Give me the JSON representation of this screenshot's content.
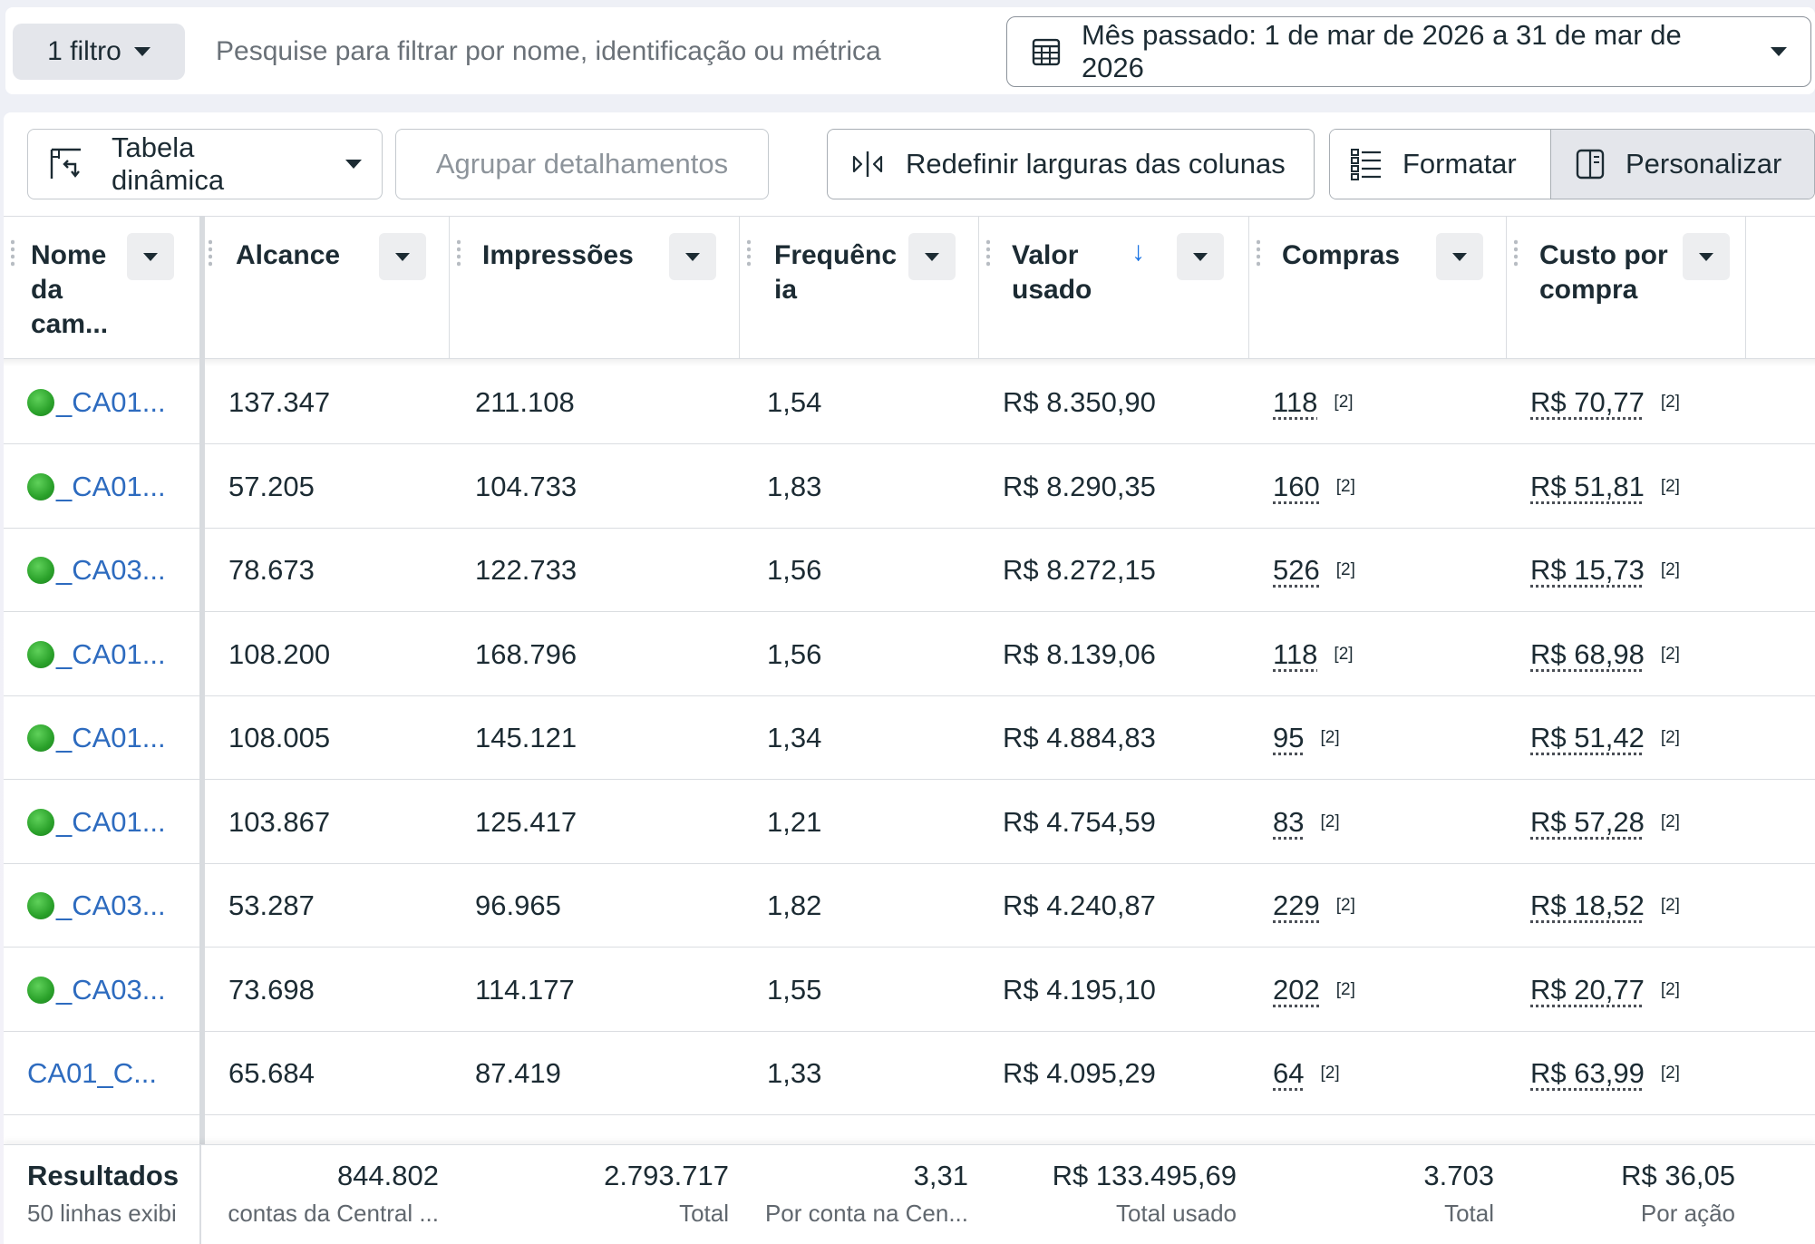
{
  "filter": {
    "filter_button_label": "1 filtro",
    "search_placeholder": "Pesquise para filtrar por nome, identificação ou métrica",
    "date_range_label": "Mês passado: 1 de mar de 2026 a 31 de mar de 2026"
  },
  "toolbar": {
    "pivot_label": "Tabela dinâmica",
    "group_label": "Agrupar detalhamentos",
    "reset_widths_label": "Redefinir larguras das colunas",
    "format_label": "Formatar",
    "customize_label": "Personalizar"
  },
  "columns": [
    {
      "label": "Nome\nda\ncam..."
    },
    {
      "label": "Alcance"
    },
    {
      "label": "Impressões"
    },
    {
      "label": "Frequênc\nia"
    },
    {
      "label": "Valor\nusado"
    },
    {
      "label": "Compras"
    },
    {
      "label": "Custo por\ncompra"
    }
  ],
  "sort": {
    "column": "Valor usado",
    "direction": "descending",
    "icon": "arrow-down-icon"
  },
  "rows": [
    {
      "name": "_CA01...",
      "active": true,
      "reach": "137.347",
      "impressions": "211.108",
      "frequency": "1,54",
      "spent": "R$ 8.350,90",
      "purchases": "118",
      "purchases_note": "[2]",
      "cpp": "R$ 70,77",
      "cpp_note": "[2]"
    },
    {
      "name": "_CA01...",
      "active": true,
      "reach": "57.205",
      "impressions": "104.733",
      "frequency": "1,83",
      "spent": "R$ 8.290,35",
      "purchases": "160",
      "purchases_note": "[2]",
      "cpp": "R$ 51,81",
      "cpp_note": "[2]"
    },
    {
      "name": "_CA03...",
      "active": true,
      "reach": "78.673",
      "impressions": "122.733",
      "frequency": "1,56",
      "spent": "R$ 8.272,15",
      "purchases": "526",
      "purchases_note": "[2]",
      "cpp": "R$ 15,73",
      "cpp_note": "[2]"
    },
    {
      "name": "_CA01...",
      "active": true,
      "reach": "108.200",
      "impressions": "168.796",
      "frequency": "1,56",
      "spent": "R$ 8.139,06",
      "purchases": "118",
      "purchases_note": "[2]",
      "cpp": "R$ 68,98",
      "cpp_note": "[2]"
    },
    {
      "name": "_CA01...",
      "active": true,
      "reach": "108.005",
      "impressions": "145.121",
      "frequency": "1,34",
      "spent": "R$ 4.884,83",
      "purchases": "95",
      "purchases_note": "[2]",
      "cpp": "R$ 51,42",
      "cpp_note": "[2]"
    },
    {
      "name": "_CA01...",
      "active": true,
      "reach": "103.867",
      "impressions": "125.417",
      "frequency": "1,21",
      "spent": "R$ 4.754,59",
      "purchases": "83",
      "purchases_note": "[2]",
      "cpp": "R$ 57,28",
      "cpp_note": "[2]"
    },
    {
      "name": "_CA03...",
      "active": true,
      "reach": "53.287",
      "impressions": "96.965",
      "frequency": "1,82",
      "spent": "R$ 4.240,87",
      "purchases": "229",
      "purchases_note": "[2]",
      "cpp": "R$ 18,52",
      "cpp_note": "[2]"
    },
    {
      "name": "_CA03...",
      "active": true,
      "reach": "73.698",
      "impressions": "114.177",
      "frequency": "1,55",
      "spent": "R$ 4.195,10",
      "purchases": "202",
      "purchases_note": "[2]",
      "cpp": "R$ 20,77",
      "cpp_note": "[2]"
    },
    {
      "name": "CA01_C...",
      "active": false,
      "reach": "65.684",
      "impressions": "87.419",
      "frequency": "1,33",
      "spent": "R$ 4.095,29",
      "purchases": "64",
      "purchases_note": "[2]",
      "cpp": "R$ 63,99",
      "cpp_note": "[2]"
    }
  ],
  "totals": {
    "title": "Resultados",
    "subtitle": "50 linhas exibi",
    "reach": "844.802",
    "reach_sub": "contas da Central ...",
    "impressions": "2.793.717",
    "impressions_sub": "Total",
    "frequency": "3,31",
    "frequency_sub": "Por conta na Cen...",
    "spent": "R$ 133.495,69",
    "spent_sub": "Total usado",
    "purchases": "3.703",
    "purchases_sub": "Total",
    "cpp": "R$ 36,05",
    "cpp_sub": "Por ação"
  },
  "colors": {
    "link": "#2d6bbf",
    "active_dot": "#2aa12a",
    "sort_arrow": "#1b74e4"
  }
}
